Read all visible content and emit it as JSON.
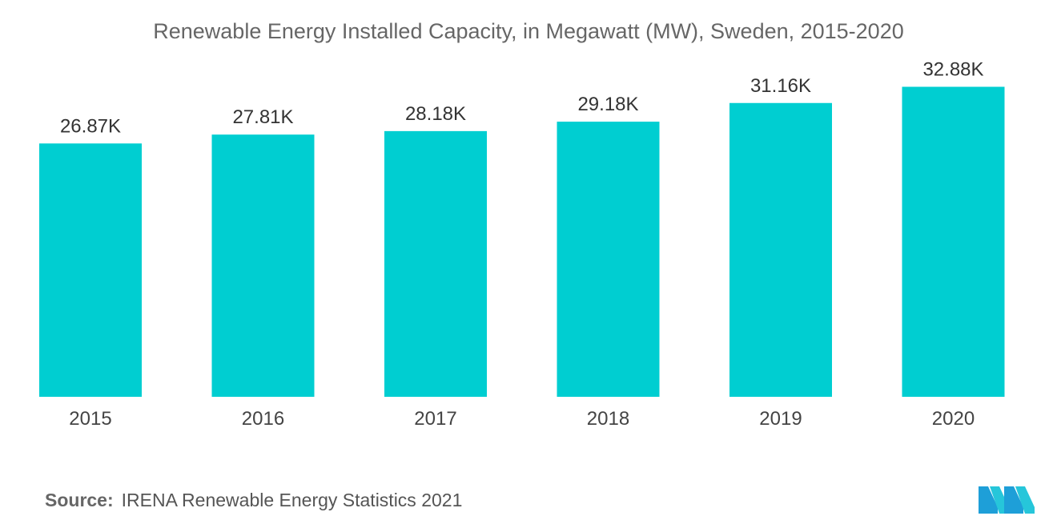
{
  "chart_data": {
    "type": "bar",
    "title": "Renewable Energy Installed Capacity, in Megawatt (MW), Sweden, 2015-2020",
    "categories": [
      "2015",
      "2016",
      "2017",
      "2018",
      "2019",
      "2020"
    ],
    "values": [
      26870,
      27810,
      28180,
      29180,
      31160,
      32880
    ],
    "data_labels": [
      "26.87K",
      "27.81K",
      "28.18K",
      "29.18K",
      "31.16K",
      "32.88K"
    ],
    "xlabel": "",
    "ylabel": "",
    "grid": false,
    "legend": "none",
    "bar_color": "#00CED1"
  },
  "source": {
    "label": "Source:",
    "text": "IRENA Renewable Energy Statistics 2021"
  },
  "logo": {
    "icon": "mordor-intelligence-logo-icon",
    "colors": [
      "#1e9fd8",
      "#26c6da"
    ]
  }
}
